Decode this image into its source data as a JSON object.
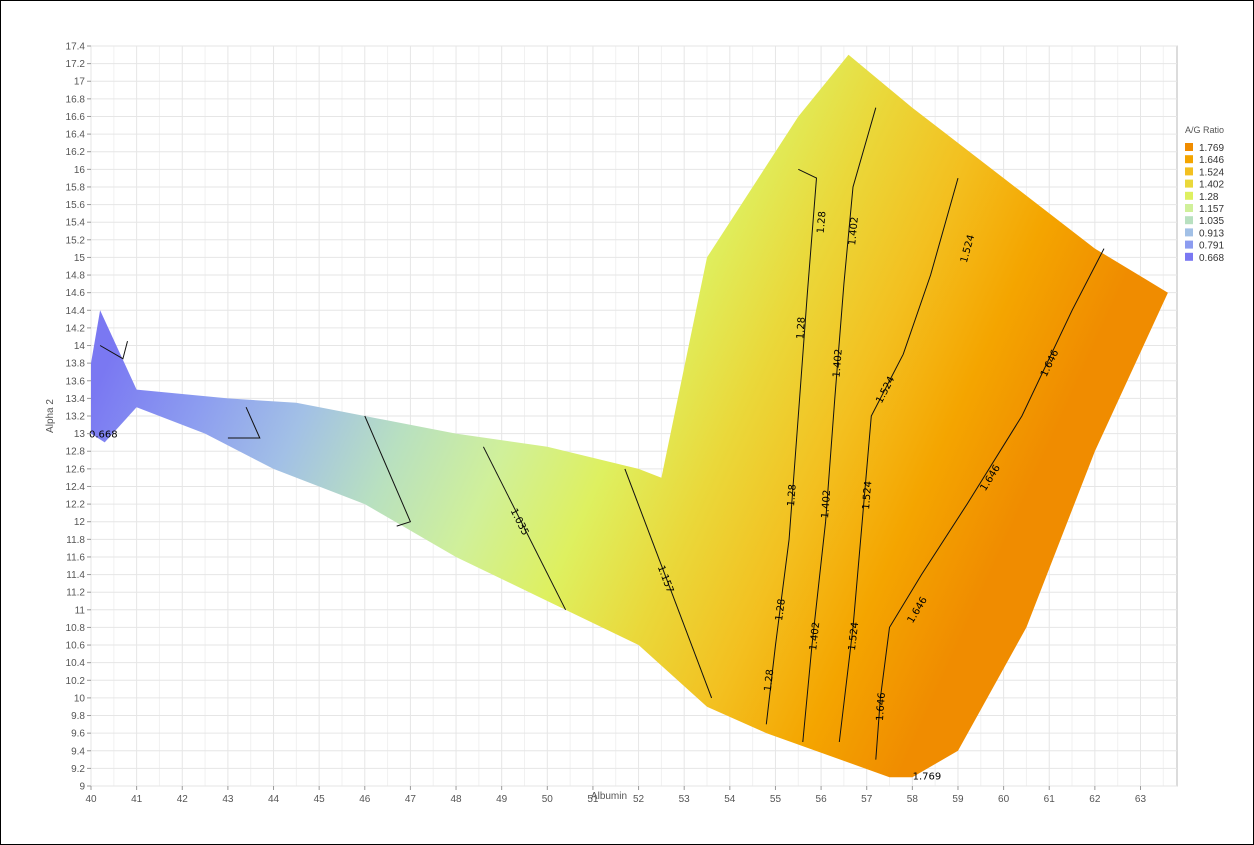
{
  "chart_data": {
    "type": "contour",
    "title": "",
    "xlabel": "Albumin",
    "ylabel": "Alpha 2",
    "xlim": [
      40,
      63.8
    ],
    "ylim": [
      9,
      17.4
    ],
    "x_ticks": [
      40,
      41,
      42,
      43,
      44,
      45,
      46,
      47,
      48,
      49,
      50,
      51,
      52,
      53,
      54,
      55,
      56,
      57,
      58,
      59,
      60,
      61,
      62,
      63
    ],
    "y_ticks": [
      "9",
      "9.2",
      "9.4",
      "9.6",
      "9.8",
      "10",
      "10.2",
      "10.4",
      "10.6",
      "10.8",
      "11",
      "11.2",
      "11.4",
      "11.6",
      "11.8",
      "12",
      "12.2",
      "12.4",
      "12.6",
      "12.8",
      "13",
      "13.2",
      "13.4",
      "13.6",
      "13.8",
      "14",
      "14.2",
      "14.4",
      "14.6",
      "14.8",
      "15",
      "15.2",
      "15.4",
      "15.6",
      "15.8",
      "16",
      "16.2",
      "16.4",
      "16.6",
      "16.8",
      "17",
      "17.2",
      "17.4"
    ],
    "grid": true,
    "legend": {
      "title": "A/G Ratio",
      "position": "right",
      "entries": [
        {
          "label": "1.769",
          "color": "#f08c00"
        },
        {
          "label": "1.646",
          "color": "#f4a500"
        },
        {
          "label": "1.524",
          "color": "#f3c020"
        },
        {
          "label": "1.402",
          "color": "#ead83a"
        },
        {
          "label": "1.28",
          "color": "#def060"
        },
        {
          "label": "1.157",
          "color": "#d0f09a"
        },
        {
          "label": "1.035",
          "color": "#b8e0c0"
        },
        {
          "label": "0.913",
          "color": "#a2c0e6"
        },
        {
          "label": "0.791",
          "color": "#8c9cf0"
        },
        {
          "label": "0.668",
          "color": "#7a78f2"
        }
      ]
    },
    "data_region": [
      [
        40.0,
        13.0
      ],
      [
        40.0,
        13.8
      ],
      [
        40.2,
        14.4
      ],
      [
        41.0,
        13.5
      ],
      [
        43.0,
        13.4
      ],
      [
        44.5,
        13.35
      ],
      [
        46.0,
        13.2
      ],
      [
        48.0,
        13.0
      ],
      [
        50.0,
        12.85
      ],
      [
        52.0,
        12.6
      ],
      [
        52.5,
        12.5
      ],
      [
        53.5,
        15.0
      ],
      [
        55.5,
        16.6
      ],
      [
        56.6,
        17.3
      ],
      [
        58.0,
        16.7
      ],
      [
        60.0,
        15.9
      ],
      [
        62.0,
        15.1
      ],
      [
        63.6,
        14.6
      ],
      [
        62.0,
        12.8
      ],
      [
        60.5,
        10.8
      ],
      [
        59.0,
        9.4
      ],
      [
        58.0,
        9.1
      ],
      [
        57.5,
        9.1
      ],
      [
        54.8,
        9.6
      ],
      [
        53.5,
        9.9
      ],
      [
        52.0,
        10.6
      ],
      [
        50.0,
        11.1
      ],
      [
        48.0,
        11.6
      ],
      [
        46.0,
        12.2
      ],
      [
        44.0,
        12.6
      ],
      [
        42.5,
        13.0
      ],
      [
        41.0,
        13.3
      ],
      [
        40.3,
        12.9
      ]
    ],
    "value_gradient": {
      "axis": [
        {
          "x": 40.0,
          "y": 13.4,
          "value": 0.668
        },
        {
          "x": 57.8,
          "y": 9.2,
          "value": 1.769
        }
      ],
      "stops": [
        {
          "value": 0.668,
          "color": "#7a78f2"
        },
        {
          "value": 0.791,
          "color": "#8c9cf0"
        },
        {
          "value": 0.913,
          "color": "#a2c0e6"
        },
        {
          "value": 1.035,
          "color": "#b8e0c0"
        },
        {
          "value": 1.157,
          "color": "#d0f09a"
        },
        {
          "value": 1.28,
          "color": "#def060"
        },
        {
          "value": 1.402,
          "color": "#ead83a"
        },
        {
          "value": 1.524,
          "color": "#f3c020"
        },
        {
          "value": 1.646,
          "color": "#f4a500"
        },
        {
          "value": 1.769,
          "color": "#f08c00"
        }
      ]
    },
    "contours": [
      {
        "level": "",
        "points": [
          [
            40.2,
            14.0
          ],
          [
            40.7,
            13.85
          ],
          [
            40.8,
            14.05
          ]
        ]
      },
      {
        "level": "",
        "points": [
          [
            43.4,
            13.3
          ],
          [
            43.7,
            12.95
          ],
          [
            43.0,
            12.95
          ]
        ]
      },
      {
        "level": "",
        "points": [
          [
            46.0,
            13.2
          ],
          [
            47.0,
            12.0
          ],
          [
            46.7,
            11.95
          ]
        ]
      },
      {
        "level": "1.035",
        "points": [
          [
            48.6,
            12.85
          ],
          [
            50.4,
            11.0
          ]
        ],
        "label_at": [
          49.4,
          12.0
        ]
      },
      {
        "level": "1.157",
        "points": [
          [
            51.7,
            12.6
          ],
          [
            53.6,
            10.0
          ]
        ],
        "label_at": [
          52.6,
          11.35
        ]
      },
      {
        "level": "1.28",
        "points": [
          [
            55.5,
            16.0
          ],
          [
            55.9,
            15.9
          ],
          [
            55.7,
            14.6
          ],
          [
            55.5,
            13.2
          ],
          [
            55.3,
            11.8
          ],
          [
            55.0,
            10.6
          ],
          [
            54.8,
            9.7
          ]
        ],
        "label_at": [
          [
            56.0,
            15.4
          ],
          [
            55.55,
            14.2
          ],
          [
            55.35,
            12.3
          ],
          [
            55.1,
            11.0
          ],
          [
            54.85,
            10.2
          ]
        ]
      },
      {
        "level": "1.402",
        "points": [
          [
            57.2,
            16.7
          ],
          [
            56.7,
            15.8
          ],
          [
            56.5,
            14.7
          ],
          [
            56.3,
            13.4
          ],
          [
            56.1,
            12.0
          ],
          [
            55.8,
            10.6
          ],
          [
            55.6,
            9.5
          ]
        ],
        "label_at": [
          [
            56.7,
            15.3
          ],
          [
            56.35,
            13.8
          ],
          [
            56.1,
            12.2
          ],
          [
            55.85,
            10.7
          ]
        ]
      },
      {
        "level": "1.524",
        "points": [
          [
            59.0,
            15.9
          ],
          [
            58.4,
            14.8
          ],
          [
            57.8,
            13.9
          ],
          [
            57.1,
            13.2
          ],
          [
            56.9,
            12.0
          ],
          [
            56.7,
            10.8
          ],
          [
            56.4,
            9.5
          ]
        ],
        "label_at": [
          [
            59.2,
            15.1
          ],
          [
            57.4,
            13.5
          ],
          [
            57.0,
            12.3
          ],
          [
            56.7,
            10.7
          ]
        ]
      },
      {
        "level": "1.646",
        "points": [
          [
            62.2,
            15.1
          ],
          [
            61.5,
            14.4
          ],
          [
            60.4,
            13.2
          ],
          [
            59.2,
            12.2
          ],
          [
            58.2,
            11.4
          ],
          [
            57.5,
            10.8
          ],
          [
            57.3,
            10.0
          ],
          [
            57.2,
            9.3
          ]
        ],
        "label_at": [
          [
            61.0,
            13.8
          ],
          [
            59.7,
            12.5
          ],
          [
            58.1,
            11.0
          ],
          [
            57.3,
            9.9
          ]
        ]
      }
    ],
    "annotations": [
      {
        "text": "0.668",
        "x": 40.0,
        "y": 13.0
      },
      {
        "text": "1.769",
        "x": 58.05,
        "y": 9.12
      }
    ]
  }
}
